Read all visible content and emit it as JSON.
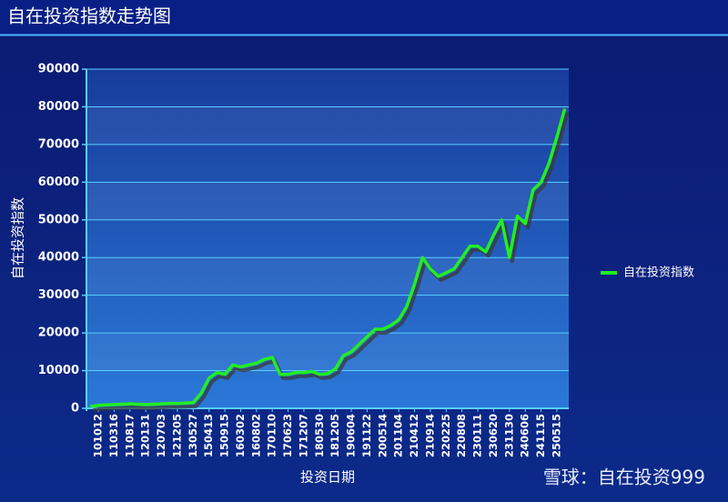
{
  "chart_data": {
    "type": "line",
    "title": "自在投资指数走势图",
    "x_label": "投资日期",
    "y_label": "自在投资指数",
    "watermark": "雪球：自在投资999",
    "categories": [
      null,
      "101012",
      null,
      "110316",
      null,
      "110817",
      null,
      "120131",
      null,
      "120703",
      null,
      "121205",
      null,
      "130527",
      null,
      "150413",
      null,
      "150915",
      null,
      "160302",
      null,
      "160802",
      null,
      "170110",
      null,
      "170623",
      null,
      "171207",
      null,
      "180530",
      null,
      "181205",
      null,
      "190604",
      null,
      "191122",
      null,
      "200514",
      null,
      "201104",
      null,
      "210412",
      null,
      "210914",
      null,
      "220225",
      null,
      "220808",
      null,
      "230111",
      null,
      "230620",
      null,
      "231130",
      null,
      "240606",
      null,
      "241115",
      null,
      "250515",
      null
    ],
    "series": [
      {
        "name": "自在投资指数",
        "color": "#22ee22",
        "values": [
          500,
          800,
          900,
          1000,
          1100,
          1200,
          1100,
          1000,
          1100,
          1200,
          1300,
          1300,
          1400,
          1500,
          4000,
          8000,
          9500,
          9000,
          11500,
          11000,
          11500,
          12000,
          13000,
          13500,
          9000,
          9000,
          9500,
          9500,
          9800,
          9000,
          9200,
          10500,
          14000,
          15000,
          17000,
          19000,
          21000,
          21000,
          22000,
          23500,
          27000,
          33000,
          40000,
          37000,
          35000,
          36000,
          37000,
          40000,
          43000,
          43000,
          41500,
          46000,
          50000,
          40000,
          51000,
          49000,
          58000,
          60000,
          65000,
          72000,
          79500
        ]
      }
    ],
    "ylim": [
      0,
      90000
    ],
    "yticks": [
      0,
      10000,
      20000,
      30000,
      40000,
      50000,
      60000,
      70000,
      80000,
      90000
    ],
    "grid": true,
    "legend": "right"
  }
}
